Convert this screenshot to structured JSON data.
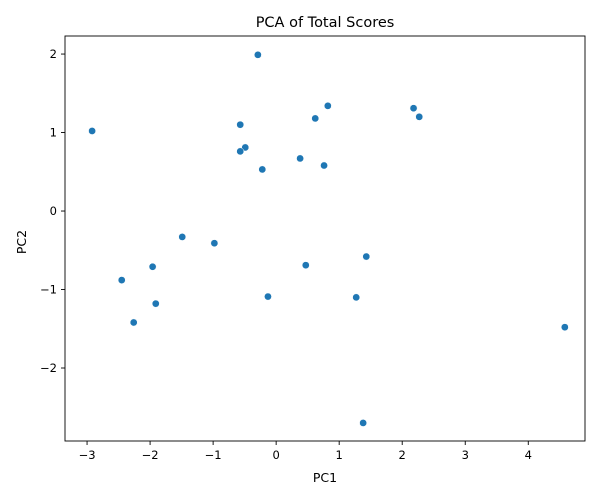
{
  "chart_data": {
    "type": "scatter",
    "title": "PCA of Total Scores",
    "xlabel": "PC1",
    "ylabel": "PC2",
    "xlim": [
      -3.35,
      4.9
    ],
    "ylim": [
      -2.93,
      2.23
    ],
    "xticks": [
      -3,
      -2,
      -1,
      0,
      1,
      2,
      3,
      4
    ],
    "yticks": [
      -2,
      -1,
      0,
      1,
      2
    ],
    "xtick_labels": [
      "−3",
      "−2",
      "−1",
      "0",
      "1",
      "2",
      "3",
      "4"
    ],
    "ytick_labels": [
      "−2",
      "−1",
      "0",
      "1",
      "2"
    ],
    "grid": false,
    "legend": "none",
    "marker_color": "#1f77b4",
    "points": [
      {
        "x": -2.92,
        "y": 1.02
      },
      {
        "x": -0.29,
        "y": 1.99
      },
      {
        "x": 0.82,
        "y": 1.34
      },
      {
        "x": 2.18,
        "y": 1.31
      },
      {
        "x": 2.27,
        "y": 1.2
      },
      {
        "x": 0.62,
        "y": 1.18
      },
      {
        "x": -0.57,
        "y": 1.1
      },
      {
        "x": -0.49,
        "y": 0.81
      },
      {
        "x": -0.57,
        "y": 0.76
      },
      {
        "x": 0.38,
        "y": 0.67
      },
      {
        "x": 0.76,
        "y": 0.58
      },
      {
        "x": -0.22,
        "y": 0.53
      },
      {
        "x": -1.49,
        "y": -0.33
      },
      {
        "x": -0.98,
        "y": -0.41
      },
      {
        "x": 1.43,
        "y": -0.58
      },
      {
        "x": 0.47,
        "y": -0.69
      },
      {
        "x": -1.96,
        "y": -0.71
      },
      {
        "x": -2.45,
        "y": -0.88
      },
      {
        "x": -0.13,
        "y": -1.09
      },
      {
        "x": 1.27,
        "y": -1.1
      },
      {
        "x": -1.91,
        "y": -1.18
      },
      {
        "x": -2.26,
        "y": -1.42
      },
      {
        "x": 4.58,
        "y": -1.48
      },
      {
        "x": 1.38,
        "y": -2.7
      }
    ]
  }
}
